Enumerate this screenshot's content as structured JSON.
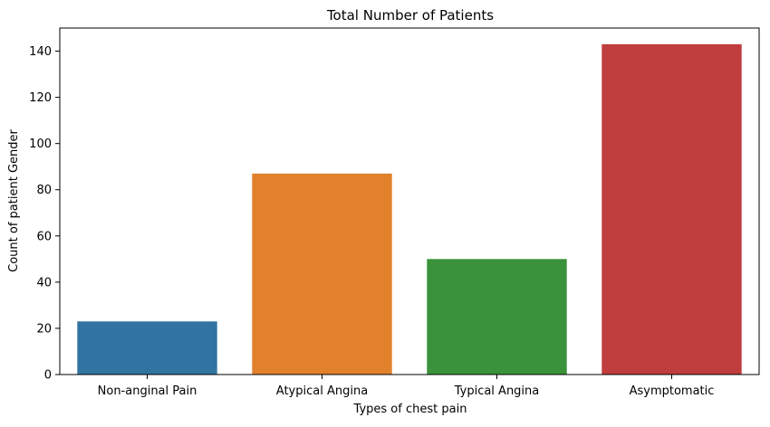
{
  "chart_data": {
    "type": "bar",
    "title": "Total Number of Patients",
    "xlabel": "Types of chest pain",
    "ylabel": "Count of patient Gender",
    "categories": [
      "Non-anginal Pain",
      "Atypical Angina",
      "Typical Angina",
      "Asymptomatic"
    ],
    "values": [
      23,
      87,
      50,
      143
    ],
    "colors": [
      "#3274a1",
      "#e1812c",
      "#3a923a",
      "#c03d3e"
    ],
    "ylim": [
      0,
      150
    ],
    "yticks": [
      0,
      20,
      40,
      60,
      80,
      100,
      120,
      140
    ],
    "grid": false,
    "legend": "none"
  }
}
